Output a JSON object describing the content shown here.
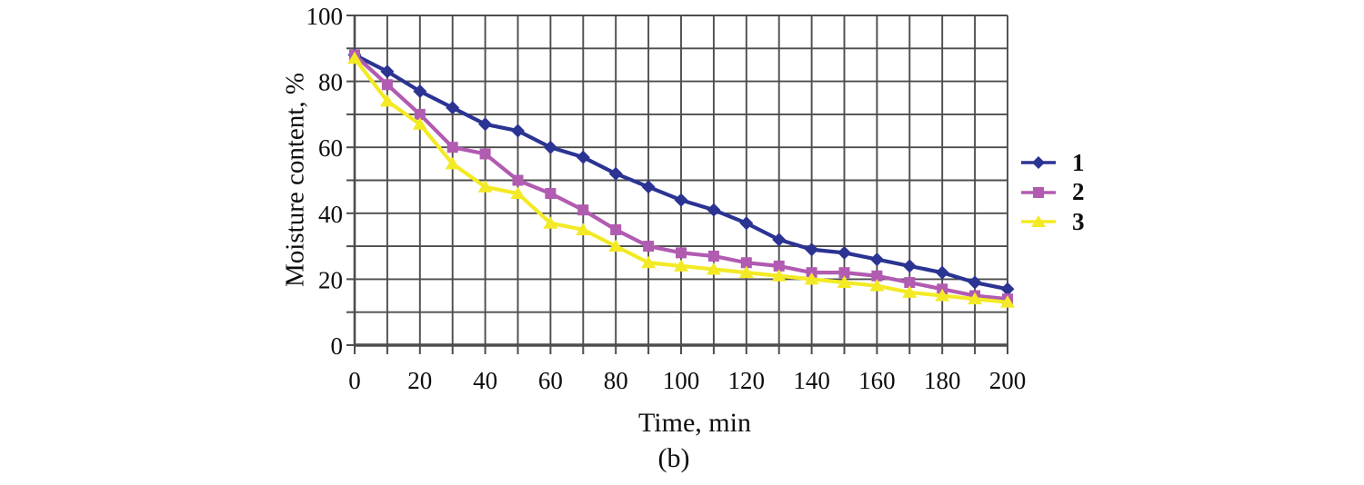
{
  "figure": {
    "caption": "(b)"
  },
  "chart_data": {
    "type": "line",
    "title": "",
    "xlabel": "Time, min",
    "ylabel": "Moisture content, %",
    "xlim": [
      0,
      200
    ],
    "ylim": [
      0,
      100
    ],
    "grid": true,
    "grid_step_x": 10,
    "grid_step_y": 10,
    "x_tick_label_step": 20,
    "y_tick_label_step": 20,
    "grid_color": "#4d4d4d",
    "axis_color": "#4d4d4d",
    "legend_position": "right",
    "x": [
      0,
      10,
      20,
      30,
      40,
      50,
      60,
      70,
      80,
      90,
      100,
      110,
      120,
      130,
      140,
      150,
      160,
      170,
      180,
      190,
      200
    ],
    "series": [
      {
        "name": "1",
        "marker": "diamond",
        "color": "#2b3493",
        "values": [
          88,
          83,
          77,
          72,
          67,
          65,
          60,
          57,
          52,
          48,
          44,
          41,
          37,
          32,
          29,
          28,
          26,
          24,
          22,
          19,
          17
        ]
      },
      {
        "name": "2",
        "marker": "square",
        "color": "#b15bb1",
        "values": [
          88,
          79,
          70,
          60,
          58,
          50,
          46,
          41,
          35,
          30,
          28,
          27,
          25,
          24,
          22,
          22,
          21,
          19,
          17,
          15,
          14
        ]
      },
      {
        "name": "3",
        "marker": "triangle",
        "color": "#f3ea25",
        "values": [
          87,
          74,
          67,
          55,
          48,
          46,
          37,
          35,
          30,
          25,
          24,
          23,
          22,
          21,
          20,
          19,
          18,
          16,
          15,
          14,
          13
        ]
      }
    ]
  }
}
